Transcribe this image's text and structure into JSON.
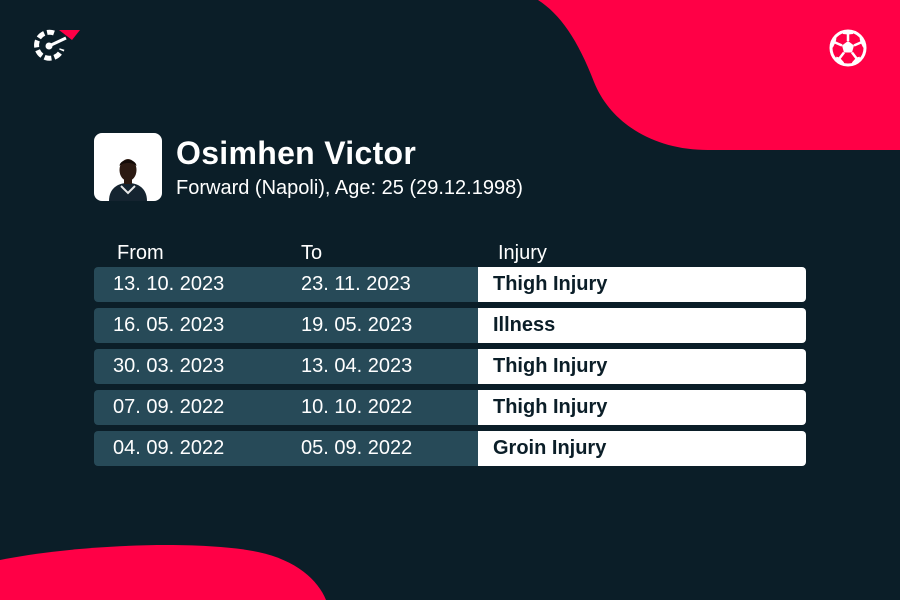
{
  "colors": {
    "background": "#0b1e28",
    "accent": "#ff0046",
    "row_dark": "#274a58",
    "row_light": "#ffffff"
  },
  "icons": {
    "logo": "flashscore-logo-icon",
    "sport": "football-icon"
  },
  "player": {
    "name": "Osimhen Victor",
    "details": "Forward (Napoli), Age: 25 (29.12.1998)"
  },
  "table": {
    "headers": {
      "from": "From",
      "to": "To",
      "injury": "Injury"
    },
    "rows": [
      {
        "from": "13. 10. 2023",
        "to": "23. 11. 2023",
        "injury": "Thigh Injury"
      },
      {
        "from": "16. 05. 2023",
        "to": "19. 05. 2023",
        "injury": "Illness"
      },
      {
        "from": "30. 03. 2023",
        "to": "13. 04. 2023",
        "injury": "Thigh Injury"
      },
      {
        "from": "07. 09. 2022",
        "to": "10. 10. 2022",
        "injury": "Thigh Injury"
      },
      {
        "from": "04. 09. 2022",
        "to": "05. 09. 2022",
        "injury": "Groin Injury"
      }
    ]
  }
}
